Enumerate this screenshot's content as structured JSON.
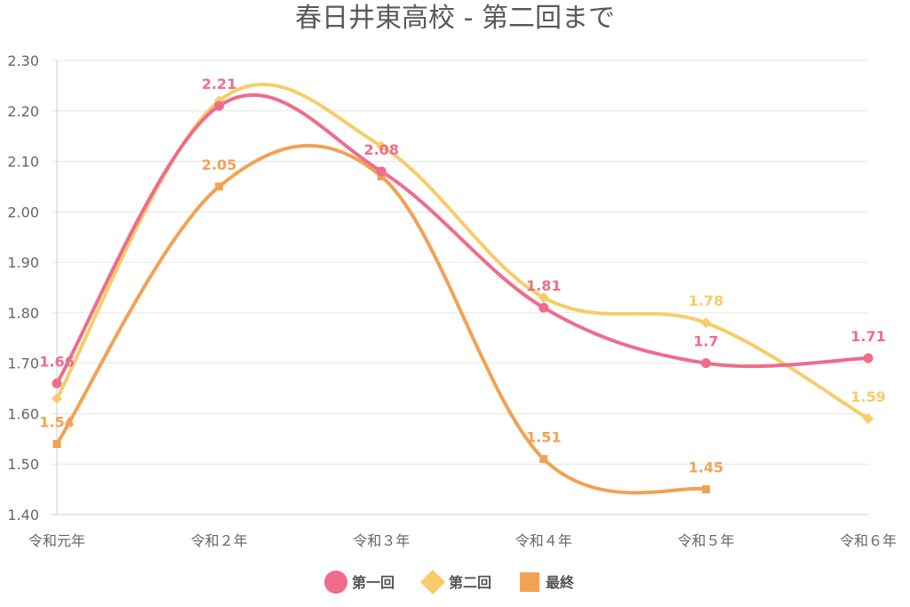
{
  "chart_data": {
    "type": "line",
    "title": "春日井東高校 - 第二回まで",
    "xlabel": "",
    "ylabel": "",
    "categories": [
      "令和元年",
      "令和２年",
      "令和３年",
      "令和４年",
      "令和５年",
      "令和６年"
    ],
    "ylim": [
      1.4,
      2.3
    ],
    "yticks": [
      "1.40",
      "1.50",
      "1.60",
      "1.70",
      "1.80",
      "1.90",
      "2.00",
      "2.10",
      "2.20",
      "2.30"
    ],
    "grid": true,
    "legend_position": "bottom",
    "series": [
      {
        "name": "第一回",
        "color": "#ee6d8a",
        "marker": "circle",
        "values": [
          1.66,
          2.21,
          2.08,
          1.81,
          1.7,
          1.71
        ],
        "labels": [
          "1.66",
          "2.21",
          "2.08",
          "1.81",
          "1.7",
          "1.71"
        ]
      },
      {
        "name": "第二回",
        "color": "#f7cc6a",
        "marker": "diamond",
        "values": [
          1.63,
          2.22,
          2.13,
          1.83,
          1.78,
          1.59
        ],
        "labels": [
          "",
          "",
          "",
          "",
          "1.78",
          "1.59"
        ]
      },
      {
        "name": "最終",
        "color": "#f2a252",
        "marker": "square",
        "values": [
          1.54,
          2.05,
          2.07,
          1.51,
          1.45,
          null
        ],
        "labels": [
          "1.54",
          "2.05",
          "",
          "1.51",
          "1.45",
          ""
        ]
      }
    ]
  }
}
